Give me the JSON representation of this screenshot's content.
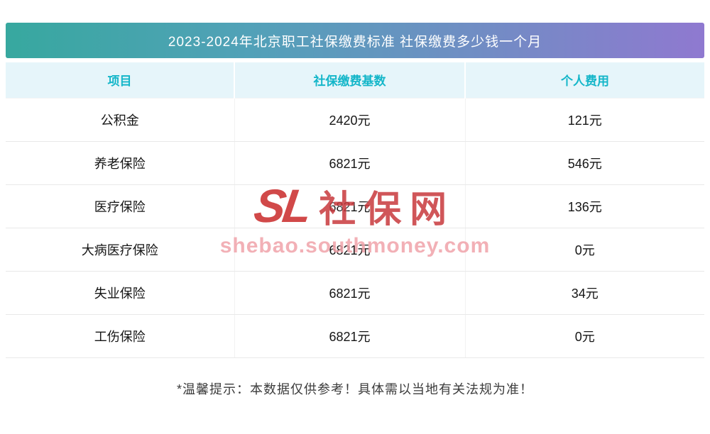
{
  "title": "2023-2024年北京职工社保缴费标准 社保缴费多少钱一个月",
  "chart_data": {
    "type": "table",
    "title": "2023-2024年北京职工社保缴费标准 社保缴费多少钱一个月",
    "columns": [
      "项目",
      "社保缴费基数",
      "个人费用"
    ],
    "rows": [
      [
        "公积金",
        "2420元",
        "121元"
      ],
      [
        "养老保险",
        "6821元",
        "546元"
      ],
      [
        "医疗保险",
        "6821元",
        "136元"
      ],
      [
        "大病医疗保险",
        "6821元",
        "0元"
      ],
      [
        "失业保险",
        "6821元",
        "34元"
      ],
      [
        "工伤保险",
        "6821元",
        "0元"
      ]
    ]
  },
  "watermark": {
    "logo": "SL",
    "brand": "社保网",
    "url": "shebao.southmoney.com"
  },
  "footer": "*温馨提示：本数据仅供参考！具体需以当地有关法规为准！",
  "colors": {
    "banner_gradient_start": "#37a89f",
    "banner_gradient_end": "#8f79d0",
    "header_bg": "#e6f5fa",
    "header_text": "#14b6c9",
    "watermark_red": "#c92a2a",
    "watermark_pink": "#f0a3aa"
  }
}
